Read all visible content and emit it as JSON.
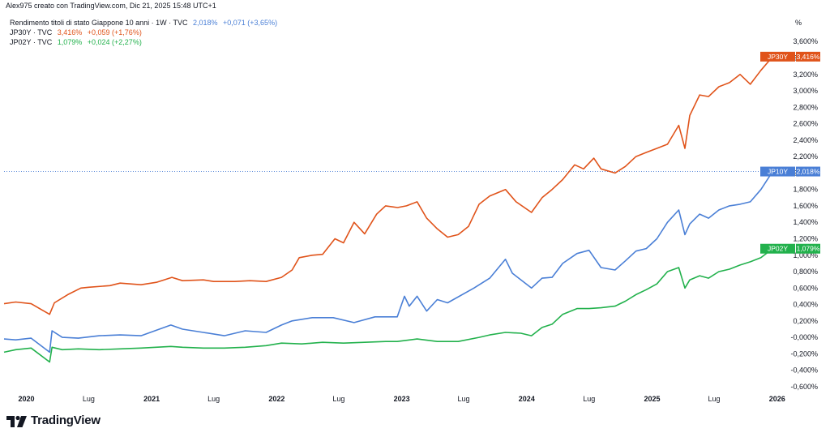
{
  "header": {
    "text": "Alex975 creato con TradingView.com, Dic 21, 2025 15:48 UTC+1"
  },
  "legend": {
    "rows": [
      {
        "name": "Rendimento titoli di stato Giappone 10 anni · 1W · TVC",
        "value": "2,018%",
        "change": "+0,071 (+3,65%)",
        "color": "#4a7fd6"
      },
      {
        "name": "JP30Y · TVC",
        "value": "3,416%",
        "change": "+0,059 (+1,76%)",
        "color": "#e0531a"
      },
      {
        "name": "JP02Y · TVC",
        "value": "1,079%",
        "change": "+0,024 (+2,27%)",
        "color": "#22b14c"
      }
    ]
  },
  "footer": {
    "logo_text": "TradingView"
  },
  "chart_data": {
    "type": "line",
    "unit_label": "%",
    "ylim": [
      -0.65,
      3.75
    ],
    "xlim": [
      "2019-10-28",
      "2026-01-23"
    ],
    "y_ticks": [
      "3,600%",
      "3,400%",
      "3,200%",
      "3,000%",
      "2,800%",
      "2,600%",
      "2,400%",
      "2,200%",
      "2,000%",
      "1,800%",
      "1,600%",
      "1,400%",
      "1,200%",
      "1,000%",
      "0,800%",
      "0,600%",
      "0,400%",
      "0,200%",
      "-0,000%",
      "-0,200%",
      "-0,400%",
      "-0,600%"
    ],
    "x_ticks": [
      {
        "label": "2020",
        "date": "2020-01-01",
        "bold": true
      },
      {
        "label": "Lug",
        "date": "2020-07-01",
        "bold": false
      },
      {
        "label": "2021",
        "date": "2021-01-01",
        "bold": true
      },
      {
        "label": "Lug",
        "date": "2021-07-01",
        "bold": false
      },
      {
        "label": "2022",
        "date": "2022-01-01",
        "bold": true
      },
      {
        "label": "Lug",
        "date": "2022-07-01",
        "bold": false
      },
      {
        "label": "2023",
        "date": "2023-01-01",
        "bold": true
      },
      {
        "label": "Lug",
        "date": "2023-07-01",
        "bold": false
      },
      {
        "label": "2024",
        "date": "2024-01-01",
        "bold": true
      },
      {
        "label": "Lug",
        "date": "2024-07-01",
        "bold": false
      },
      {
        "label": "2025",
        "date": "2025-01-01",
        "bold": true
      },
      {
        "label": "Lug",
        "date": "2025-07-01",
        "bold": false
      },
      {
        "label": "2026",
        "date": "2026-01-01",
        "bold": true
      }
    ],
    "grid": false,
    "series": [
      {
        "name": "JP30Y",
        "color": "#e0531a",
        "last_label": "3,416%",
        "x": [
          "2019-10-28",
          "2019-12-01",
          "2020-01-15",
          "2020-03-09",
          "2020-03-23",
          "2020-05-01",
          "2020-06-08",
          "2020-07-01",
          "2020-09-01",
          "2020-10-01",
          "2020-12-01",
          "2021-01-15",
          "2021-03-01",
          "2021-04-01",
          "2021-06-01",
          "2021-07-01",
          "2021-09-01",
          "2021-10-15",
          "2021-12-01",
          "2022-01-15",
          "2022-02-15",
          "2022-03-08",
          "2022-04-15",
          "2022-05-15",
          "2022-06-20",
          "2022-07-15",
          "2022-08-15",
          "2022-09-15",
          "2022-10-20",
          "2022-11-15",
          "2022-12-20",
          "2023-01-15",
          "2023-02-15",
          "2023-03-15",
          "2023-04-15",
          "2023-05-15",
          "2023-06-15",
          "2023-07-15",
          "2023-08-15",
          "2023-09-15",
          "2023-10-31",
          "2023-12-01",
          "2024-01-15",
          "2024-02-15",
          "2024-03-15",
          "2024-04-15",
          "2024-05-20",
          "2024-06-15",
          "2024-07-15",
          "2024-08-05",
          "2024-09-15",
          "2024-10-15",
          "2024-11-15",
          "2024-12-15",
          "2025-01-15",
          "2025-02-15",
          "2025-03-20",
          "2025-04-07",
          "2025-04-21",
          "2025-05-20",
          "2025-06-15",
          "2025-07-15",
          "2025-08-15",
          "2025-09-15",
          "2025-10-15",
          "2025-11-15",
          "2025-12-19"
        ],
        "y": [
          0.41,
          0.43,
          0.41,
          0.28,
          0.42,
          0.52,
          0.6,
          0.61,
          0.63,
          0.66,
          0.64,
          0.67,
          0.73,
          0.69,
          0.7,
          0.68,
          0.68,
          0.69,
          0.68,
          0.73,
          0.82,
          0.97,
          1.0,
          1.01,
          1.2,
          1.15,
          1.4,
          1.26,
          1.5,
          1.6,
          1.58,
          1.6,
          1.65,
          1.45,
          1.32,
          1.22,
          1.25,
          1.35,
          1.62,
          1.72,
          1.8,
          1.65,
          1.52,
          1.7,
          1.8,
          1.92,
          2.1,
          2.05,
          2.18,
          2.05,
          2.0,
          2.08,
          2.2,
          2.25,
          2.3,
          2.35,
          2.58,
          2.3,
          2.7,
          2.95,
          2.93,
          3.05,
          3.1,
          3.2,
          3.08,
          3.25,
          3.416
        ]
      },
      {
        "name": "JP10Y",
        "color": "#4a7fd6",
        "last_label": "2,018%",
        "x": [
          "2019-10-28",
          "2019-12-01",
          "2020-01-15",
          "2020-03-09",
          "2020-03-16",
          "2020-04-15",
          "2020-06-01",
          "2020-08-01",
          "2020-10-01",
          "2020-12-01",
          "2021-02-26",
          "2021-04-01",
          "2021-06-01",
          "2021-08-01",
          "2021-10-01",
          "2021-12-01",
          "2022-01-15",
          "2022-02-15",
          "2022-04-15",
          "2022-06-15",
          "2022-08-15",
          "2022-10-15",
          "2022-12-19",
          "2023-01-09",
          "2023-01-23",
          "2023-02-15",
          "2023-03-15",
          "2023-04-15",
          "2023-05-15",
          "2023-07-31",
          "2023-09-15",
          "2023-10-31",
          "2023-11-20",
          "2024-01-15",
          "2024-02-15",
          "2024-03-15",
          "2024-04-15",
          "2024-05-27",
          "2024-07-01",
          "2024-08-05",
          "2024-09-15",
          "2024-10-15",
          "2024-11-15",
          "2024-12-15",
          "2025-01-15",
          "2025-02-15",
          "2025-03-20",
          "2025-04-07",
          "2025-04-21",
          "2025-05-20",
          "2025-06-15",
          "2025-07-15",
          "2025-08-15",
          "2025-09-15",
          "2025-10-15",
          "2025-11-15",
          "2025-12-19"
        ],
        "y": [
          -0.02,
          -0.03,
          -0.01,
          -0.18,
          0.08,
          -0.0,
          -0.01,
          0.02,
          0.03,
          0.02,
          0.15,
          0.1,
          0.06,
          0.02,
          0.08,
          0.06,
          0.15,
          0.2,
          0.24,
          0.24,
          0.18,
          0.25,
          0.25,
          0.5,
          0.38,
          0.5,
          0.32,
          0.46,
          0.42,
          0.6,
          0.72,
          0.95,
          0.78,
          0.6,
          0.72,
          0.73,
          0.9,
          1.02,
          1.06,
          0.85,
          0.82,
          0.93,
          1.05,
          1.08,
          1.2,
          1.4,
          1.55,
          1.25,
          1.38,
          1.5,
          1.45,
          1.55,
          1.6,
          1.62,
          1.65,
          1.8,
          2.018
        ]
      },
      {
        "name": "JP02Y",
        "color": "#22b14c",
        "last_label": "1,079%",
        "x": [
          "2019-10-28",
          "2019-12-01",
          "2020-01-15",
          "2020-03-09",
          "2020-03-16",
          "2020-04-15",
          "2020-06-01",
          "2020-08-01",
          "2020-10-01",
          "2020-12-01",
          "2021-02-26",
          "2021-04-01",
          "2021-06-01",
          "2021-08-01",
          "2021-10-01",
          "2021-12-01",
          "2022-01-15",
          "2022-03-15",
          "2022-05-15",
          "2022-07-15",
          "2022-09-15",
          "2022-11-15",
          "2022-12-19",
          "2023-02-15",
          "2023-04-15",
          "2023-06-15",
          "2023-08-15",
          "2023-09-15",
          "2023-10-31",
          "2023-12-15",
          "2024-01-15",
          "2024-02-15",
          "2024-03-15",
          "2024-04-15",
          "2024-05-27",
          "2024-07-01",
          "2024-08-05",
          "2024-09-15",
          "2024-10-15",
          "2024-11-15",
          "2024-12-15",
          "2025-01-15",
          "2025-02-15",
          "2025-03-20",
          "2025-04-07",
          "2025-04-21",
          "2025-05-20",
          "2025-06-15",
          "2025-07-15",
          "2025-08-15",
          "2025-09-15",
          "2025-10-15",
          "2025-11-15",
          "2025-12-19"
        ],
        "y": [
          -0.18,
          -0.15,
          -0.13,
          -0.3,
          -0.12,
          -0.15,
          -0.14,
          -0.15,
          -0.14,
          -0.13,
          -0.11,
          -0.12,
          -0.13,
          -0.13,
          -0.12,
          -0.1,
          -0.07,
          -0.08,
          -0.06,
          -0.07,
          -0.06,
          -0.05,
          -0.05,
          -0.02,
          -0.05,
          -0.05,
          0.0,
          0.03,
          0.06,
          0.05,
          0.02,
          0.12,
          0.16,
          0.28,
          0.35,
          0.35,
          0.36,
          0.38,
          0.44,
          0.52,
          0.58,
          0.65,
          0.8,
          0.85,
          0.6,
          0.7,
          0.75,
          0.72,
          0.8,
          0.83,
          0.88,
          0.92,
          0.97,
          1.079
        ]
      }
    ]
  }
}
